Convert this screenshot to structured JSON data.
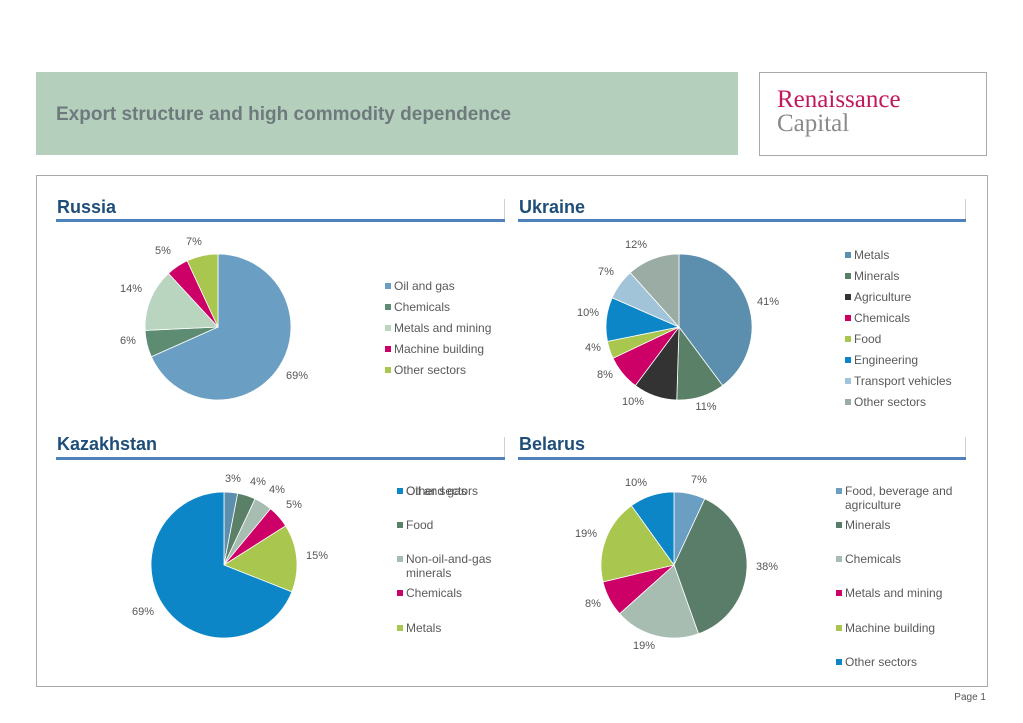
{
  "header": {
    "title": "Export structure and high commodity dependence"
  },
  "logo": {
    "line1": "Renaissance",
    "line2": "Capital"
  },
  "footer": {
    "page": "Page 1"
  },
  "chart_data": [
    {
      "type": "pie",
      "title": "Russia",
      "labels": [
        "Oil and gas",
        "Chemicals",
        "Metals and mining",
        "Machine building",
        "Other sectors"
      ],
      "values": [
        69,
        6,
        14,
        5,
        7
      ],
      "value_labels": [
        "69%",
        "6%",
        "14%",
        "5%",
        "7%"
      ],
      "colors": [
        "#6a9fc3",
        "#5d8c72",
        "#b9d5c0",
        "#cc0066",
        "#a9c64e"
      ]
    },
    {
      "type": "pie",
      "title": "Ukraine",
      "labels": [
        "Metals",
        "Minerals",
        "Agriculture",
        "Chemicals",
        "Food",
        "Engineering",
        "Transport vehicles",
        "Other sectors"
      ],
      "values": [
        41,
        11,
        10,
        8,
        4,
        10,
        7,
        12
      ],
      "value_labels": [
        "41%",
        "11%",
        "10%",
        "8%",
        "4%",
        "10%",
        "7%",
        "12%"
      ],
      "colors": [
        "#5b8fad",
        "#5a8068",
        "#333333",
        "#cc0066",
        "#a9c64e",
        "#0d86c8",
        "#a2c4d9",
        "#9aaca3"
      ]
    },
    {
      "type": "pie",
      "title": "Kazakhstan",
      "labels": [
        "Other sectors",
        "Food",
        "Non-oil-and-gas minerals",
        "Chemicals",
        "Metals",
        "Oil and gas"
      ],
      "values": [
        3,
        4,
        4,
        5,
        15,
        69
      ],
      "value_labels": [
        "3%",
        "4%",
        "4%",
        "5%",
        "15%",
        "69%"
      ],
      "colors": [
        "#5b8fad",
        "#5a8068",
        "#a7bdb1",
        "#cc0066",
        "#a9c64e",
        "#0d86c8"
      ]
    },
    {
      "type": "pie",
      "title": "Belarus",
      "labels": [
        "Food, beverage and agriculture",
        "Minerals",
        "Chemicals",
        "Metals and mining",
        "Machine building",
        "Other sectors"
      ],
      "values": [
        7,
        38,
        19,
        8,
        19,
        10
      ],
      "value_labels": [
        "7%",
        "38%",
        "19%",
        "8%",
        "19%",
        "10%"
      ],
      "colors": [
        "#6a9fc3",
        "#5a7d6a",
        "#a7bdb1",
        "#cc0066",
        "#a9c64e",
        "#0d86c8"
      ]
    }
  ]
}
